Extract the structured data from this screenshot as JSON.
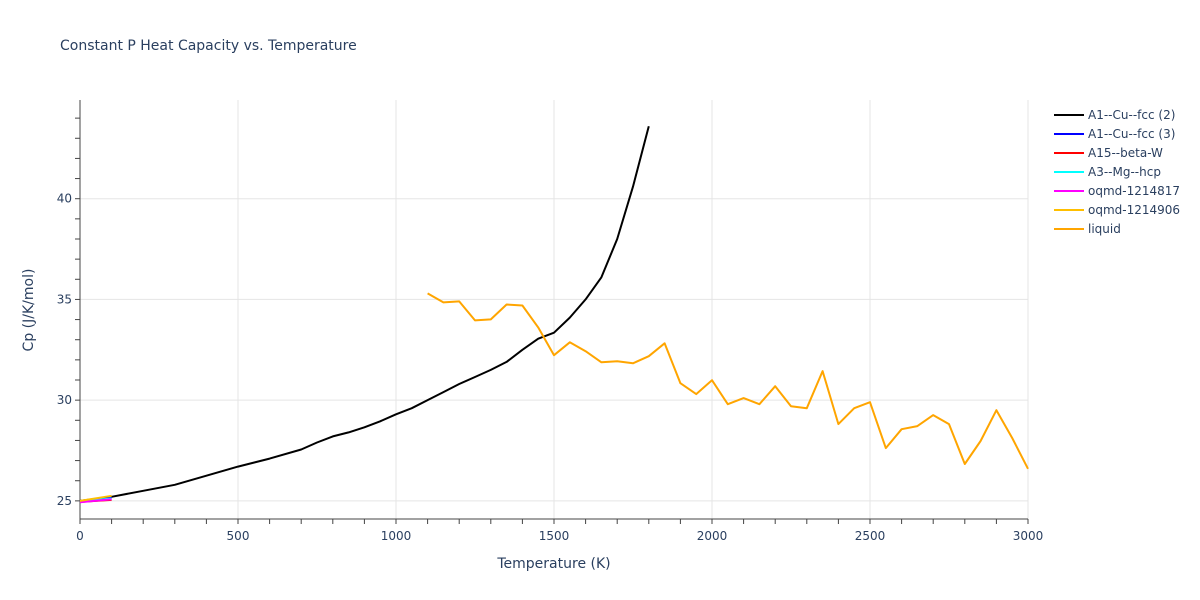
{
  "chart_data": {
    "type": "line",
    "title": "Constant P Heat Capacity vs. Temperature",
    "xlabel": "Temperature (K)",
    "ylabel": "Cp (J/K/mol)",
    "xlim": [
      0,
      3000
    ],
    "ylim": [
      24.1,
      44.9
    ],
    "xticks": [
      0,
      500,
      1000,
      1500,
      2000,
      2500,
      3000
    ],
    "xtick_labels": [
      "0",
      "500",
      "1000",
      "1500",
      "2000",
      "2500",
      "3000"
    ],
    "yticks": [
      25,
      30,
      35,
      40
    ],
    "ytick_labels": [
      "25",
      "30",
      "35",
      "40"
    ],
    "grid": true,
    "legend_position": "top-right-outside",
    "series": [
      {
        "name": "A1--Cu--fcc (2)",
        "color": "#000000",
        "x": [
          0,
          100,
          200,
          300,
          400,
          500,
          600,
          700,
          750,
          800,
          850,
          900,
          950,
          1000,
          1050,
          1100,
          1150,
          1200,
          1250,
          1300,
          1350,
          1400,
          1450,
          1500,
          1550,
          1600,
          1650,
          1700,
          1750,
          1800
        ],
        "y": [
          25.0,
          25.2,
          25.5,
          25.8,
          26.25,
          26.7,
          27.1,
          27.55,
          27.9,
          28.2,
          28.4,
          28.65,
          28.95,
          29.3,
          29.6,
          30.0,
          30.4,
          30.8,
          31.15,
          31.5,
          31.9,
          32.5,
          33.05,
          33.35,
          34.1,
          35.0,
          36.1,
          38.0,
          40.6,
          43.6
        ]
      },
      {
        "name": "A1--Cu--fcc (3)",
        "color": "#0000ff",
        "x": [
          0,
          100
        ],
        "y": [
          24.95,
          25.15
        ]
      },
      {
        "name": "A15--beta-W",
        "color": "#ff0000",
        "x": [
          0,
          100
        ],
        "y": [
          24.95,
          25.05
        ]
      },
      {
        "name": "A3--Mg--hcp",
        "color": "#00ffff",
        "x": [
          0,
          100
        ],
        "y": [
          24.97,
          25.12
        ]
      },
      {
        "name": "oqmd-1214817",
        "color": "#ff00ff",
        "x": [
          0,
          100
        ],
        "y": [
          24.93,
          25.08
        ]
      },
      {
        "name": "oqmd-1214906",
        "color": "#ffbf00",
        "x": [
          0,
          100
        ],
        "y": [
          25.0,
          25.25
        ]
      },
      {
        "name": "liquid",
        "color": "#ffa500",
        "x": [
          1100,
          1150,
          1200,
          1250,
          1300,
          1350,
          1400,
          1450,
          1500,
          1550,
          1600,
          1650,
          1700,
          1750,
          1800,
          1850,
          1900,
          1950,
          2000,
          2050,
          2100,
          2150,
          2200,
          2250,
          2300,
          2350,
          2400,
          2450,
          2500,
          2550,
          2600,
          2650,
          2700,
          2750,
          2800,
          2850,
          2900,
          2950,
          3000
        ],
        "y": [
          35.3,
          34.85,
          34.9,
          33.96,
          34.01,
          34.75,
          34.7,
          33.61,
          32.23,
          32.87,
          32.43,
          31.88,
          31.93,
          31.83,
          32.18,
          32.82,
          30.84,
          30.3,
          30.99,
          29.8,
          30.1,
          29.8,
          30.69,
          29.7,
          29.6,
          31.44,
          28.81,
          29.6,
          29.9,
          27.62,
          28.56,
          28.71,
          29.26,
          28.81,
          26.83,
          27.97,
          29.5,
          28.12,
          26.59
        ]
      }
    ]
  }
}
